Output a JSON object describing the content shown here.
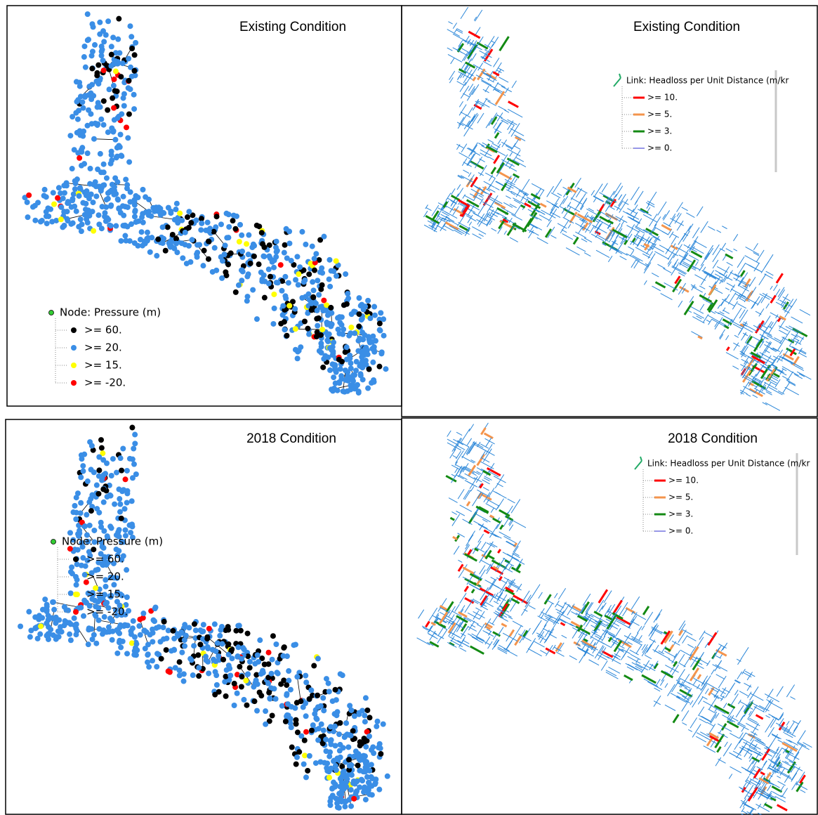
{
  "panels": [
    {
      "title": "Existing Condition",
      "legend": {
        "title": "Node: Pressure (m)",
        "kind": "node",
        "items": [
          {
            "label": ">= 60.",
            "color": "#000000"
          },
          {
            "label": ">= 20.",
            "color": "#3a8ee6"
          },
          {
            "label": ">= 15.",
            "color": "#ffff00"
          },
          {
            "label": ">= -20.",
            "color": "#ff0000"
          }
        ]
      }
    },
    {
      "title": "Existing Condition",
      "legend": {
        "title": "Link: Headloss per Unit Distance (m/kr",
        "kind": "link",
        "items": [
          {
            "label": ">= 10.",
            "color": "#ff0000"
          },
          {
            "label": ">= 5.",
            "color": "#f4944c"
          },
          {
            "label": ">= 3.",
            "color": "#138a13"
          },
          {
            "label": ">= 0.",
            "color": "#2f2fd0"
          }
        ]
      }
    },
    {
      "title": "2018 Condition",
      "legend": {
        "title": "Node: Pressure (m)",
        "kind": "node",
        "items": [
          {
            "label": ">= 60.",
            "color": "#000000"
          },
          {
            "label": ">= 20.",
            "color": "#3a8ee6"
          },
          {
            "label": ">= 15.",
            "color": "#ffff00"
          },
          {
            "label": ">= -20.",
            "color": "#ff0000"
          }
        ]
      }
    },
    {
      "title": "2018 Condition",
      "legend": {
        "title": "Link: Headloss per Unit Distance (m/kr",
        "kind": "link",
        "items": [
          {
            "label": ">= 10.",
            "color": "#ff0000"
          },
          {
            "label": ">= 5.",
            "color": "#f4944c"
          },
          {
            "label": ">= 3.",
            "color": "#138a13"
          },
          {
            "label": ">= 0.",
            "color": "#2f2fd0"
          }
        ]
      }
    }
  ]
}
